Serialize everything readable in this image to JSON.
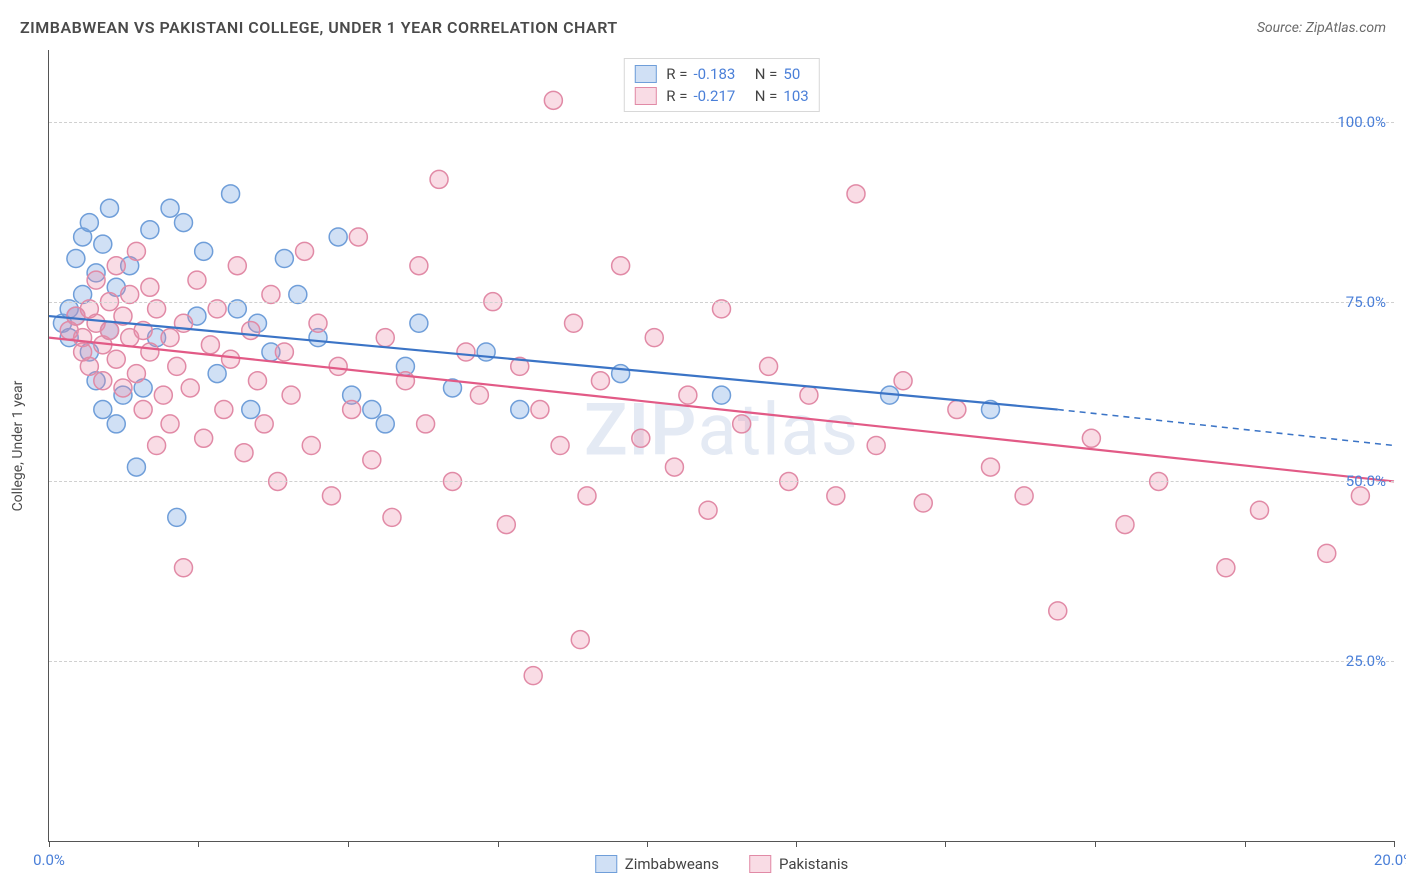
{
  "title": "ZIMBABWEAN VS PAKISTANI COLLEGE, UNDER 1 YEAR CORRELATION CHART",
  "source": "Source: ZipAtlas.com",
  "ylabel": "College, Under 1 year",
  "watermark_bold": "ZIP",
  "watermark_rest": "atlas",
  "chart": {
    "type": "scatter",
    "xlim": [
      0,
      20
    ],
    "ylim": [
      0,
      110
    ],
    "x_ticks": [
      0,
      20
    ],
    "x_tick_labels": [
      "0.0%",
      "20.0%"
    ],
    "x_minor_ticks": [
      2.22,
      4.44,
      6.67,
      8.89,
      11.11,
      13.33,
      15.56,
      17.78
    ],
    "y_ticks": [
      25,
      50,
      75,
      100
    ],
    "y_tick_labels": [
      "25.0%",
      "50.0%",
      "75.0%",
      "100.0%"
    ],
    "background_color": "#ffffff",
    "grid_color": "#d0d0d0",
    "marker_radius": 9,
    "marker_stroke_width": 1.5,
    "line_width": 2.2
  },
  "series": [
    {
      "name": "Zimbabweans",
      "color_fill": "rgba(120,165,225,0.35)",
      "color_stroke": "#6f9ed9",
      "line_color": "#3b74c6",
      "R": "-0.183",
      "N": "50",
      "trend": {
        "x1": 0,
        "y1": 73,
        "x2": 15,
        "y2": 60,
        "x_dash_to": 20,
        "y_dash_to": 55
      },
      "points": [
        [
          0.2,
          72
        ],
        [
          0.3,
          74
        ],
        [
          0.3,
          70
        ],
        [
          0.4,
          73
        ],
        [
          0.4,
          81
        ],
        [
          0.5,
          84
        ],
        [
          0.5,
          76
        ],
        [
          0.6,
          68
        ],
        [
          0.6,
          86
        ],
        [
          0.7,
          79
        ],
        [
          0.7,
          64
        ],
        [
          0.8,
          60
        ],
        [
          0.8,
          83
        ],
        [
          0.9,
          88
        ],
        [
          0.9,
          71
        ],
        [
          1.0,
          58
        ],
        [
          1.0,
          77
        ],
        [
          1.1,
          62
        ],
        [
          1.2,
          80
        ],
        [
          1.3,
          52
        ],
        [
          1.4,
          63
        ],
        [
          1.5,
          85
        ],
        [
          1.6,
          70
        ],
        [
          1.8,
          88
        ],
        [
          1.9,
          45
        ],
        [
          2.0,
          86
        ],
        [
          2.2,
          73
        ],
        [
          2.3,
          82
        ],
        [
          2.5,
          65
        ],
        [
          2.7,
          90
        ],
        [
          2.8,
          74
        ],
        [
          3.0,
          60
        ],
        [
          3.1,
          72
        ],
        [
          3.3,
          68
        ],
        [
          3.5,
          81
        ],
        [
          3.7,
          76
        ],
        [
          4.0,
          70
        ],
        [
          4.3,
          84
        ],
        [
          4.5,
          62
        ],
        [
          4.8,
          60
        ],
        [
          5.0,
          58
        ],
        [
          5.3,
          66
        ],
        [
          5.5,
          72
        ],
        [
          6.0,
          63
        ],
        [
          6.5,
          68
        ],
        [
          7.0,
          60
        ],
        [
          8.5,
          65
        ],
        [
          10.0,
          62
        ],
        [
          12.5,
          62
        ],
        [
          14.0,
          60
        ]
      ]
    },
    {
      "name": "Pakistanis",
      "color_fill": "rgba(235,140,170,0.30)",
      "color_stroke": "#e18aa6",
      "line_color": "#e25a86",
      "R": "-0.217",
      "N": "103",
      "trend": {
        "x1": 0,
        "y1": 70,
        "x2": 20,
        "y2": 50,
        "x_dash_to": 20,
        "y_dash_to": 50
      },
      "points": [
        [
          0.3,
          71
        ],
        [
          0.4,
          73
        ],
        [
          0.5,
          70
        ],
        [
          0.5,
          68
        ],
        [
          0.6,
          74
        ],
        [
          0.6,
          66
        ],
        [
          0.7,
          72
        ],
        [
          0.7,
          78
        ],
        [
          0.8,
          69
        ],
        [
          0.8,
          64
        ],
        [
          0.9,
          75
        ],
        [
          0.9,
          71
        ],
        [
          1.0,
          67
        ],
        [
          1.0,
          80
        ],
        [
          1.1,
          63
        ],
        [
          1.1,
          73
        ],
        [
          1.2,
          70
        ],
        [
          1.2,
          76
        ],
        [
          1.3,
          65
        ],
        [
          1.3,
          82
        ],
        [
          1.4,
          60
        ],
        [
          1.4,
          71
        ],
        [
          1.5,
          68
        ],
        [
          1.5,
          77
        ],
        [
          1.6,
          55
        ],
        [
          1.6,
          74
        ],
        [
          1.7,
          62
        ],
        [
          1.8,
          70
        ],
        [
          1.8,
          58
        ],
        [
          1.9,
          66
        ],
        [
          2.0,
          72
        ],
        [
          2.0,
          38
        ],
        [
          2.1,
          63
        ],
        [
          2.2,
          78
        ],
        [
          2.3,
          56
        ],
        [
          2.4,
          69
        ],
        [
          2.5,
          74
        ],
        [
          2.6,
          60
        ],
        [
          2.7,
          67
        ],
        [
          2.8,
          80
        ],
        [
          2.9,
          54
        ],
        [
          3.0,
          71
        ],
        [
          3.1,
          64
        ],
        [
          3.2,
          58
        ],
        [
          3.3,
          76
        ],
        [
          3.4,
          50
        ],
        [
          3.5,
          68
        ],
        [
          3.6,
          62
        ],
        [
          3.8,
          82
        ],
        [
          3.9,
          55
        ],
        [
          4.0,
          72
        ],
        [
          4.2,
          48
        ],
        [
          4.3,
          66
        ],
        [
          4.5,
          60
        ],
        [
          4.6,
          84
        ],
        [
          4.8,
          53
        ],
        [
          5.0,
          70
        ],
        [
          5.1,
          45
        ],
        [
          5.3,
          64
        ],
        [
          5.5,
          80
        ],
        [
          5.6,
          58
        ],
        [
          5.8,
          92
        ],
        [
          6.0,
          50
        ],
        [
          6.2,
          68
        ],
        [
          6.4,
          62
        ],
        [
          6.6,
          75
        ],
        [
          6.8,
          44
        ],
        [
          7.0,
          66
        ],
        [
          7.2,
          23
        ],
        [
          7.3,
          60
        ],
        [
          7.5,
          103
        ],
        [
          7.6,
          55
        ],
        [
          7.8,
          72
        ],
        [
          7.9,
          28
        ],
        [
          8.0,
          48
        ],
        [
          8.2,
          64
        ],
        [
          8.5,
          80
        ],
        [
          8.8,
          56
        ],
        [
          9.0,
          70
        ],
        [
          9.3,
          52
        ],
        [
          9.5,
          62
        ],
        [
          9.8,
          46
        ],
        [
          10.0,
          74
        ],
        [
          10.3,
          58
        ],
        [
          10.7,
          66
        ],
        [
          11.0,
          50
        ],
        [
          11.3,
          62
        ],
        [
          11.7,
          48
        ],
        [
          12.0,
          90
        ],
        [
          12.3,
          55
        ],
        [
          12.7,
          64
        ],
        [
          13.0,
          47
        ],
        [
          13.5,
          60
        ],
        [
          14.0,
          52
        ],
        [
          14.5,
          48
        ],
        [
          15.0,
          32
        ],
        [
          15.5,
          56
        ],
        [
          16.0,
          44
        ],
        [
          16.5,
          50
        ],
        [
          17.5,
          38
        ],
        [
          18.0,
          46
        ],
        [
          19.0,
          40
        ],
        [
          19.5,
          48
        ]
      ]
    }
  ],
  "legend_top_labels": {
    "R": "R =",
    "N": "N ="
  }
}
